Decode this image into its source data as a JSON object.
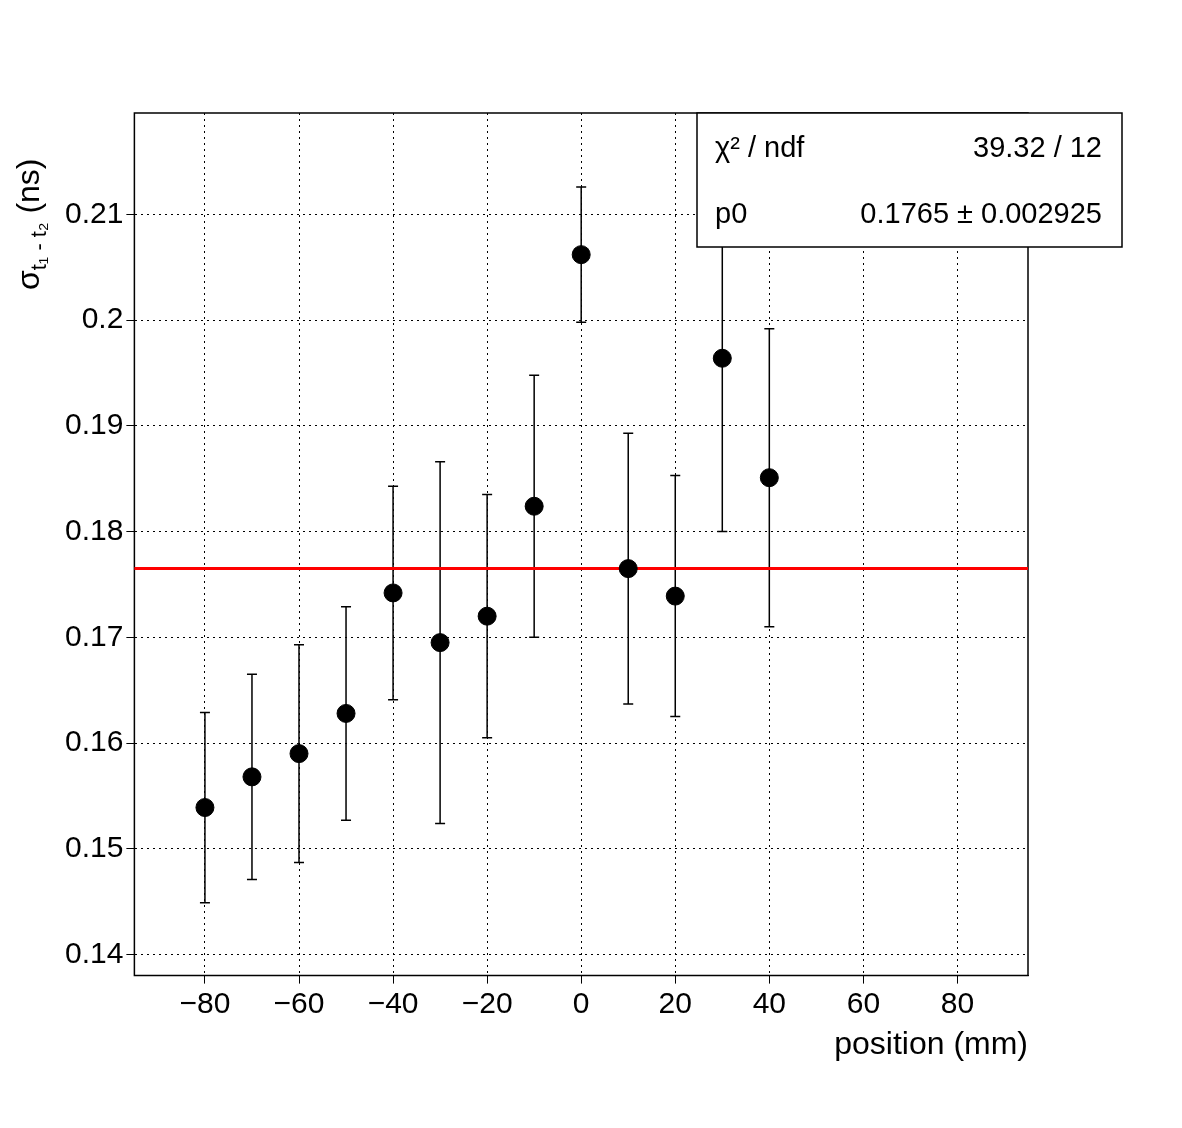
{
  "chart_data": {
    "type": "scatter",
    "xlabel": "position (mm)",
    "ylabel": "σ$_{t₁ - t₂}$ (ns)",
    "x": [
      -80,
      -70,
      -60,
      -50,
      -40,
      -30,
      -20,
      -10,
      0,
      10,
      20,
      30,
      40
    ],
    "values": [
      0.1539,
      0.1568,
      0.159,
      0.1628,
      0.1742,
      0.1695,
      0.172,
      0.1824,
      0.2062,
      0.1765,
      0.1739,
      0.1964,
      0.1851
    ],
    "errors": [
      0.009,
      0.0097,
      0.0103,
      0.0101,
      0.0101,
      0.0171,
      0.0115,
      0.0124,
      0.0064,
      0.0128,
      0.0114,
      0.0164,
      0.0141
    ],
    "color": "#000000",
    "marker": "circle",
    "xlim": [
      -95,
      95
    ],
    "xticks": [
      -80,
      -60,
      -40,
      -20,
      0,
      20,
      40,
      60,
      80
    ],
    "ylim": [
      0.138,
      0.2196
    ],
    "yticks": [
      0.14,
      0.15,
      0.16,
      0.17,
      0.18,
      0.19,
      0.2,
      0.21
    ],
    "grid": true,
    "ref_lines": [
      {
        "axis": "y",
        "value": 0.1765,
        "color": "#ff0000"
      }
    ],
    "annotations": [
      "χ² / ndf",
      "39.32 / 12",
      "p0",
      "0.1765 ± 0.002925"
    ]
  }
}
